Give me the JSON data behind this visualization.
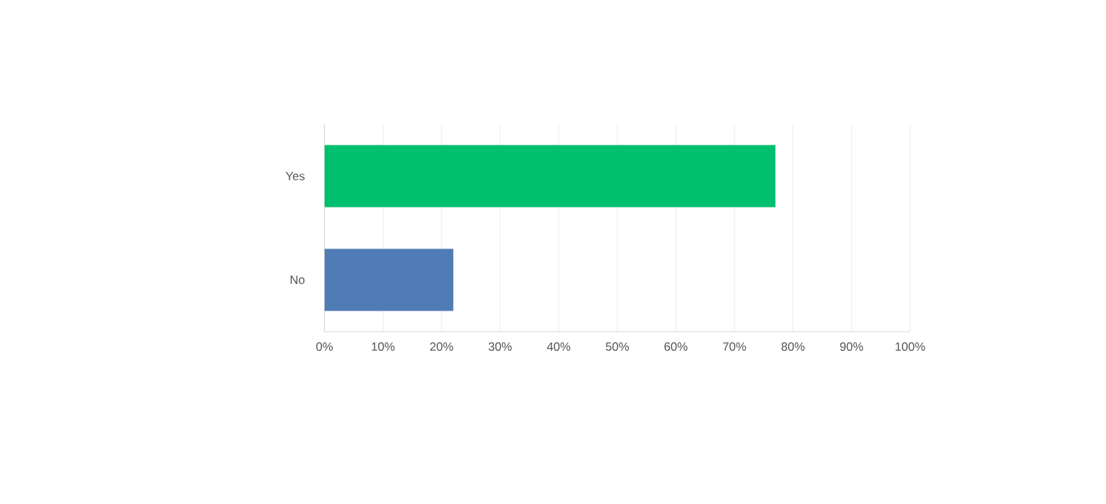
{
  "chart_data": {
    "type": "bar",
    "orientation": "horizontal",
    "categories": [
      "Yes",
      "No"
    ],
    "values": [
      77,
      22
    ],
    "colors": [
      "#00bf6f",
      "#507cb6"
    ],
    "xlim": [
      0,
      100
    ],
    "xticks": [
      {
        "value": 0,
        "label": "0%"
      },
      {
        "value": 10,
        "label": "10%"
      },
      {
        "value": 20,
        "label": "20%"
      },
      {
        "value": 30,
        "label": "30%"
      },
      {
        "value": 40,
        "label": "40%"
      },
      {
        "value": 50,
        "label": "50%"
      },
      {
        "value": 60,
        "label": "60%"
      },
      {
        "value": 70,
        "label": "70%"
      },
      {
        "value": 80,
        "label": "80%"
      },
      {
        "value": 90,
        "label": "90%"
      },
      {
        "value": 100,
        "label": "100%"
      }
    ],
    "grid": "x"
  }
}
